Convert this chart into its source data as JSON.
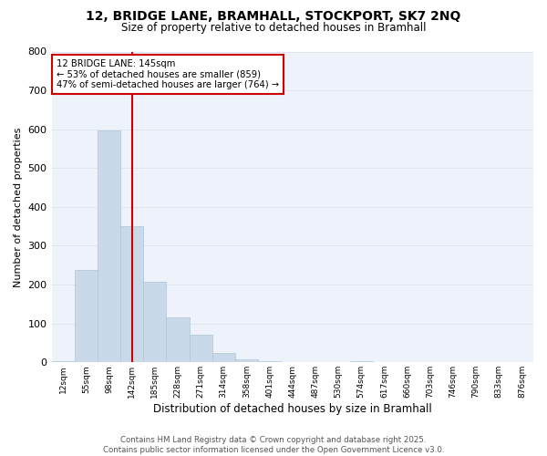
{
  "title_line1": "12, BRIDGE LANE, BRAMHALL, STOCKPORT, SK7 2NQ",
  "title_line2": "Size of property relative to detached houses in Bramhall",
  "xlabel": "Distribution of detached houses by size in Bramhall",
  "ylabel": "Number of detached properties",
  "categories": [
    "12sqm",
    "55sqm",
    "98sqm",
    "142sqm",
    "185sqm",
    "228sqm",
    "271sqm",
    "314sqm",
    "358sqm",
    "401sqm",
    "444sqm",
    "487sqm",
    "530sqm",
    "574sqm",
    "617sqm",
    "660sqm",
    "703sqm",
    "746sqm",
    "790sqm",
    "833sqm",
    "876sqm"
  ],
  "values": [
    3,
    238,
    597,
    350,
    207,
    115,
    70,
    25,
    8,
    2,
    0,
    0,
    0,
    3,
    0,
    0,
    0,
    0,
    0,
    0,
    0
  ],
  "bar_color": "#c9d9ea",
  "bar_edge_color": "#b0c4d8",
  "grid_color": "#dde5f0",
  "property_label": "12 BRIDGE LANE: 145sqm",
  "annotation_line1": "← 53% of detached houses are smaller (859)",
  "annotation_line2": "47% of semi-detached houses are larger (764) →",
  "vline_color": "#cc0000",
  "annotation_box_edge": "#cc0000",
  "vline_x": 3,
  "ylim": [
    0,
    800
  ],
  "yticks": [
    0,
    100,
    200,
    300,
    400,
    500,
    600,
    700,
    800
  ],
  "footer_line1": "Contains HM Land Registry data © Crown copyright and database right 2025.",
  "footer_line2": "Contains public sector information licensed under the Open Government Licence v3.0.",
  "bg_color": "#ffffff",
  "plot_bg_color": "#eef2fa"
}
